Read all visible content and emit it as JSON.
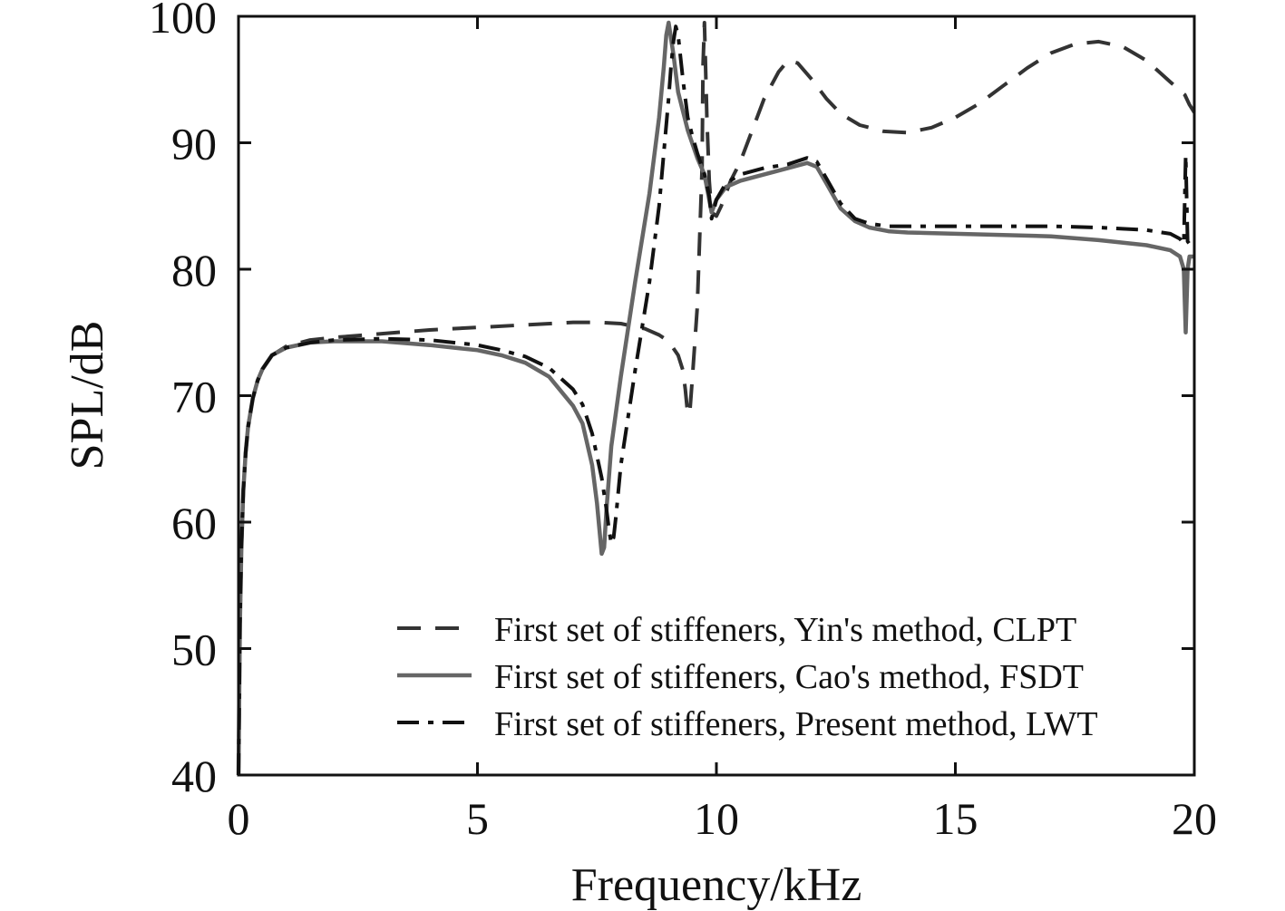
{
  "chart_data": {
    "type": "line",
    "title": "",
    "xlabel": "Frequency/kHz",
    "ylabel": "SPL/dB",
    "xlim": [
      0,
      20
    ],
    "ylim": [
      40,
      100
    ],
    "xticks": [
      0,
      5,
      10,
      15,
      20
    ],
    "yticks": [
      40,
      50,
      60,
      70,
      80,
      90,
      100
    ],
    "grid": false,
    "legend_position": "bottom-right",
    "series": [
      {
        "name": "First set of stiffeners, Yin's method, CLPT",
        "style": "dashed",
        "color": "#333333",
        "x": [
          0.0,
          0.03,
          0.06,
          0.1,
          0.15,
          0.2,
          0.3,
          0.4,
          0.5,
          0.7,
          1.0,
          1.5,
          2.0,
          3.0,
          4.0,
          5.0,
          6.0,
          7.0,
          7.5,
          8.0,
          8.5,
          8.8,
          9.0,
          9.2,
          9.3,
          9.35,
          9.4,
          9.45,
          9.5,
          9.6,
          9.7,
          9.72,
          9.75,
          9.8,
          9.85,
          9.9,
          10.0,
          10.1,
          10.2,
          10.3,
          10.5,
          10.8,
          11.0,
          11.3,
          11.5,
          11.7,
          12.0,
          12.3,
          12.6,
          13.0,
          13.5,
          14.0,
          14.5,
          15.0,
          15.5,
          16.0,
          16.5,
          17.0,
          17.5,
          18.0,
          18.5,
          19.0,
          19.5,
          19.8,
          19.9,
          20.0
        ],
        "values": [
          40.0,
          52.0,
          58.0,
          62.5,
          65.5,
          67.5,
          69.8,
          71.2,
          72.1,
          73.2,
          73.9,
          74.4,
          74.6,
          74.9,
          75.2,
          75.4,
          75.6,
          75.8,
          75.8,
          75.7,
          75.3,
          74.8,
          74.3,
          73.2,
          72.0,
          70.5,
          68.5,
          69.0,
          71.5,
          77.0,
          88.0,
          96.0,
          99.5,
          92.0,
          87.0,
          84.5,
          84.2,
          85.0,
          86.0,
          87.0,
          88.5,
          91.5,
          93.5,
          95.6,
          96.5,
          96.3,
          95.0,
          93.5,
          92.3,
          91.4,
          90.9,
          90.8,
          91.2,
          92.0,
          93.1,
          94.5,
          95.9,
          97.1,
          97.8,
          98.0,
          97.6,
          96.5,
          94.8,
          93.8,
          93.0,
          92.4
        ]
      },
      {
        "name": "First set of stiffeners, Cao's method, FSDT",
        "style": "solid",
        "color": "#666666",
        "x": [
          0.0,
          0.03,
          0.06,
          0.1,
          0.15,
          0.2,
          0.3,
          0.4,
          0.5,
          0.7,
          1.0,
          1.5,
          2.0,
          3.0,
          4.0,
          5.0,
          5.5,
          6.0,
          6.5,
          7.0,
          7.2,
          7.4,
          7.5,
          7.55,
          7.6,
          7.65,
          7.7,
          7.8,
          8.0,
          8.3,
          8.6,
          8.8,
          8.9,
          8.95,
          9.0,
          9.1,
          9.2,
          9.4,
          9.6,
          9.75,
          9.85,
          9.9,
          10.0,
          10.2,
          10.5,
          11.0,
          11.5,
          11.9,
          12.1,
          12.3,
          12.6,
          12.9,
          13.2,
          13.6,
          14.0,
          15.0,
          16.0,
          17.0,
          18.0,
          19.0,
          19.5,
          19.7,
          19.78,
          19.82,
          19.86,
          19.9,
          20.0
        ],
        "values": [
          40.0,
          52.0,
          58.0,
          62.5,
          65.5,
          67.5,
          69.8,
          71.2,
          72.1,
          73.2,
          73.8,
          74.2,
          74.3,
          74.3,
          74.0,
          73.6,
          73.2,
          72.6,
          71.5,
          69.2,
          67.8,
          64.5,
          61.5,
          59.5,
          57.5,
          58.0,
          61.0,
          66.0,
          71.5,
          79.0,
          86.0,
          92.0,
          96.0,
          98.5,
          99.5,
          97.0,
          94.0,
          91.0,
          88.8,
          87.5,
          85.5,
          84.5,
          85.5,
          86.5,
          87.0,
          87.5,
          88.0,
          88.4,
          88.1,
          86.8,
          84.8,
          83.8,
          83.3,
          83.0,
          82.9,
          82.8,
          82.7,
          82.6,
          82.3,
          81.9,
          81.5,
          81.0,
          80.0,
          75.0,
          80.0,
          81.0,
          81.0
        ]
      },
      {
        "name": "First set of stiffeners, Present method, LWT",
        "style": "dashdot",
        "color": "#111111",
        "x": [
          0.0,
          0.03,
          0.06,
          0.1,
          0.15,
          0.2,
          0.3,
          0.4,
          0.5,
          0.7,
          1.0,
          1.5,
          2.0,
          3.0,
          4.0,
          5.0,
          5.5,
          6.0,
          6.5,
          7.0,
          7.2,
          7.4,
          7.6,
          7.7,
          7.75,
          7.8,
          7.85,
          7.9,
          8.0,
          8.3,
          8.6,
          8.8,
          9.0,
          9.05,
          9.1,
          9.15,
          9.2,
          9.3,
          9.4,
          9.5,
          9.6,
          9.75,
          9.85,
          9.9,
          10.0,
          10.2,
          10.5,
          11.0,
          11.5,
          11.9,
          12.1,
          12.3,
          12.6,
          12.9,
          13.2,
          13.6,
          14.0,
          15.0,
          16.0,
          17.0,
          18.0,
          19.0,
          19.5,
          19.7,
          19.78,
          19.82,
          19.86,
          19.9,
          20.0
        ],
        "values": [
          40.0,
          52.0,
          58.0,
          62.5,
          65.5,
          67.5,
          69.8,
          71.2,
          72.1,
          73.2,
          73.8,
          74.2,
          74.4,
          74.5,
          74.4,
          74.0,
          73.6,
          73.1,
          72.2,
          70.5,
          69.3,
          67.0,
          63.5,
          61.0,
          59.5,
          58.3,
          58.8,
          60.5,
          64.5,
          72.0,
          79.0,
          85.0,
          93.5,
          96.0,
          98.0,
          99.2,
          98.5,
          95.0,
          92.0,
          90.5,
          89.2,
          87.5,
          85.8,
          84.0,
          85.5,
          86.8,
          87.5,
          88.0,
          88.3,
          88.8,
          88.5,
          87.2,
          85.2,
          84.0,
          83.6,
          83.4,
          83.4,
          83.4,
          83.4,
          83.4,
          83.3,
          83.1,
          82.8,
          82.4,
          82.0,
          89.0,
          82.2,
          82.0,
          82.0
        ]
      }
    ]
  }
}
